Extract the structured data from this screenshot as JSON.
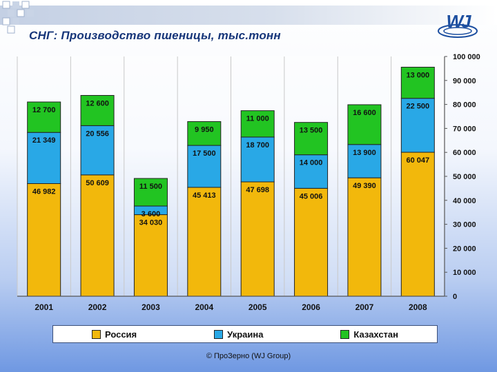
{
  "slide": {
    "title": "СНГ: Производство пшеницы, тыс.тонн",
    "logo_text": "WJ",
    "copyright": "© ПроЗерно (WJ Group)"
  },
  "colors": {
    "russia": "#f2b80c",
    "ukraine": "#29a8e6",
    "kazakhstan": "#22c422"
  },
  "legend": [
    {
      "label": "Россия",
      "color": "#f2b80c"
    },
    {
      "label": "Украина",
      "color": "#29a8e6"
    },
    {
      "label": "Казахстан",
      "color": "#22c422"
    }
  ],
  "chart_data": {
    "type": "bar",
    "stacked": true,
    "title": "СНГ: Производство пшеницы, тыс.тонн",
    "categories": [
      "2001",
      "2002",
      "2003",
      "2004",
      "2005",
      "2006",
      "2007",
      "2008"
    ],
    "series": [
      {
        "name": "Россия",
        "values": [
          46982,
          50609,
          34030,
          45413,
          47698,
          45006,
          49390,
          60047
        ],
        "labels": [
          "46 982",
          "50 609",
          "34 030",
          "45 413",
          "47 698",
          "45 006",
          "49 390",
          "60 047"
        ]
      },
      {
        "name": "Украина",
        "values": [
          21349,
          20556,
          3600,
          17500,
          18700,
          14000,
          13900,
          22500
        ],
        "labels": [
          "21 349",
          "20 556",
          "3 600",
          "17 500",
          "18 700",
          "14 000",
          "13 900",
          "22 500"
        ]
      },
      {
        "name": "Казахстан",
        "values": [
          12700,
          12600,
          11500,
          9950,
          11000,
          13500,
          16600,
          13000
        ],
        "labels": [
          "12 700",
          "12 600",
          "11 500",
          "9 950",
          "11 000",
          "13 500",
          "16 600",
          "13 000"
        ]
      }
    ],
    "ylim": [
      0,
      100000
    ],
    "yticks": [
      0,
      10000,
      20000,
      30000,
      40000,
      50000,
      60000,
      70000,
      80000,
      90000,
      100000
    ],
    "ytick_labels": [
      "0",
      "10 000",
      "20 000",
      "30 000",
      "40 000",
      "50 000",
      "60 000",
      "70 000",
      "80 000",
      "90 000",
      "100 000"
    ],
    "y_axis_side": "right",
    "grid": true,
    "legend_position": "bottom"
  }
}
